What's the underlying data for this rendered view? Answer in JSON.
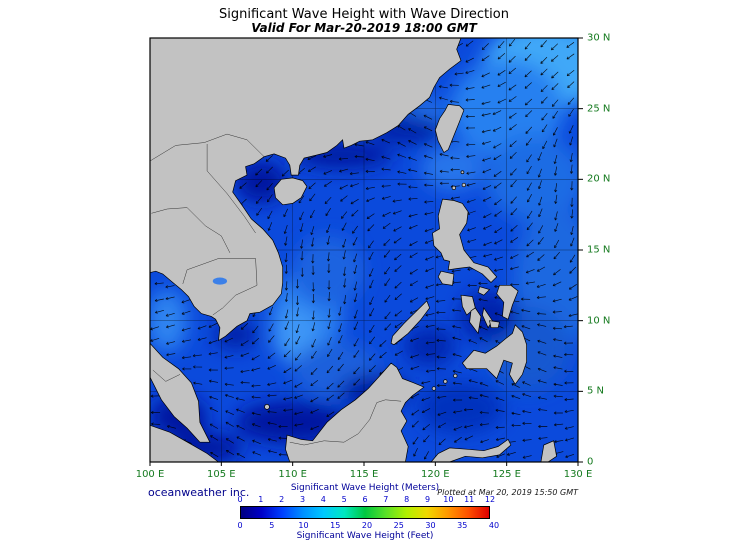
{
  "title": "Significant Wave Height with Wave Direction",
  "subtitle": "Valid For Mar-20-2019 18:00 GMT",
  "attribution": "oceanweather inc.",
  "plotted_note": "Plotted at Mar 20, 2019 15:50 GMT",
  "axes": {
    "lon_labels": [
      "100 E",
      "105 E",
      "110 E",
      "115 E",
      "120 E",
      "125 E",
      "130 E"
    ],
    "lat_labels": [
      "0",
      "5 N",
      "10 N",
      "15 N",
      "20 N",
      "25 N",
      "30 N"
    ]
  },
  "legend": {
    "meters_label": "Significant Wave Height (Meters)",
    "feet_label": "Significant Wave Height (Feet)",
    "meters_ticks": [
      0,
      1,
      2,
      3,
      4,
      5,
      6,
      7,
      8,
      9,
      10,
      11,
      12
    ],
    "feet_ticks": [
      0,
      5,
      10,
      15,
      20,
      25,
      30,
      35,
      40
    ],
    "colors": [
      "#000080",
      "#0000C8",
      "#0040FF",
      "#0090FF",
      "#00C8FF",
      "#00E8C0",
      "#00C840",
      "#58E028",
      "#B0F000",
      "#F0D800",
      "#FF9800",
      "#FF5000",
      "#E00000"
    ]
  },
  "map": {
    "lon_min": 100,
    "lon_max": 130,
    "lat_min": 0,
    "lat_max": 30,
    "ocean_base_color": "#0B4ADC",
    "land_color": "#C2C2C2"
  }
}
